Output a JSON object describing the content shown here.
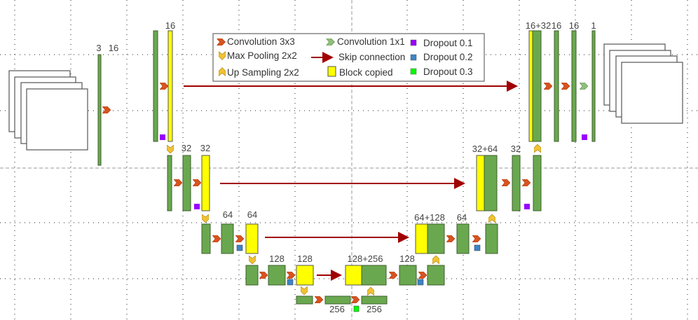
{
  "legend": {
    "conv3x3": "Convolution 3x3",
    "conv1x1": "Convolution 1x1",
    "maxpool": "Max Pooling 2x2",
    "skip": "Skip connection",
    "upsample": "Up Sampling 2x2",
    "copied": "Block copied",
    "dropout1": "Dropout 0.1",
    "dropout2": "Dropout 0.2",
    "dropout3": "Dropout 0.3"
  },
  "labels": {
    "in_ch": "3",
    "l1_a": "16",
    "l1_b": "16",
    "l2_a": "32",
    "l2_b": "32",
    "l3_a": "64",
    "l3_b": "64",
    "l4_a": "128",
    "l4_b": "128",
    "l5_a": "256",
    "l5_b": "256",
    "r4_cat": "128+256",
    "r4_a": "128",
    "r3_cat": "64+128",
    "r3_a": "64",
    "r2_cat": "32+64",
    "r2_a": "32",
    "r1_cat": "16+32",
    "r1_a": "16",
    "r1_b": "16",
    "out_ch": "1"
  },
  "colors": {
    "conv3x3": "#d9531e",
    "conv1x1": "#8fbf7a",
    "pool": "#f1c232",
    "skip": "#a00000",
    "block": "#6aa84f",
    "copied": "#ffff00",
    "dropout1": "#9900ff",
    "dropout2": "#3d85c6",
    "dropout3": "#00ff00"
  }
}
